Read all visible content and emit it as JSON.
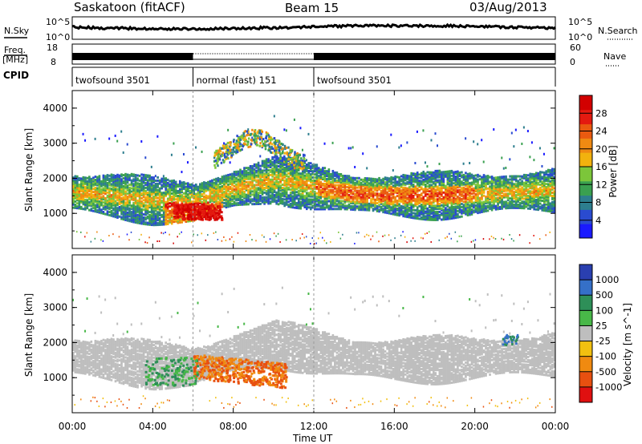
{
  "title": {
    "left": "Saskatoon (fitACF)",
    "center": "Beam 15",
    "right": "03/Aug/2013"
  },
  "status": {
    "nsky_label": "N.Sky",
    "nsearch_label": "N.Search",
    "nsky_top": "10^5",
    "nsky_bottom": "10^0",
    "nsearch_top": "10^5",
    "nsearch_bottom": "10^0",
    "freq_label": "Freq.",
    "freq_unit": "[MHz]",
    "freq_top": "18",
    "freq_bottom": "8",
    "nave_label": "Nave",
    "nave_top": "60",
    "nave_bottom": "0",
    "cpid_label": "CPID"
  },
  "cpid_segments": [
    {
      "label": "twofsound 3501",
      "start": 0,
      "end": 6
    },
    {
      "label": "normal (fast) 151",
      "start": 6,
      "end": 12
    },
    {
      "label": "twofsound 3501",
      "start": 12,
      "end": 24
    }
  ],
  "chart_data": [
    {
      "type": "heatmap",
      "name": "power",
      "ylabel": "Slant Range [km]",
      "ylim": [
        0,
        4500
      ],
      "xlim": [
        0,
        24
      ],
      "colorbar_label": "Power [dB]",
      "colorbar_ticks": [
        "4",
        "8",
        "12",
        "16",
        "20",
        "24",
        "28"
      ],
      "colorbar_colors": [
        "#1a1aff",
        "#2a4bd0",
        "#2d7e8e",
        "#3aa050",
        "#7cc63a",
        "#f2b20e",
        "#ef8a12",
        "#ea5a10",
        "#e41a10",
        "#d20000"
      ],
      "yticks": [
        "1000",
        "2000",
        "3000",
        "4000"
      ],
      "features": [
        {
          "desc": "main band",
          "t": [
            0,
            2,
            4,
            6,
            8,
            10,
            12,
            14,
            16,
            18,
            20,
            22,
            24
          ],
          "r": [
            1600,
            1500,
            1350,
            1300,
            1700,
            1950,
            1750,
            1550,
            1500,
            1500,
            1550,
            1600,
            1650
          ]
        },
        {
          "desc": "strong echoes",
          "t": [
            5,
            6,
            7
          ],
          "r": [
            1000,
            900,
            1050
          ],
          "power_db": 28
        }
      ]
    },
    {
      "type": "heatmap",
      "name": "velocity",
      "ylabel": "Slant Range [km]",
      "ylim": [
        0,
        4500
      ],
      "xlim": [
        0,
        24
      ],
      "colorbar_label": "Velocity [m s^-1]",
      "colorbar_ticks": [
        "1000",
        "500",
        "100",
        "25",
        "-25",
        "-100",
        "-500",
        "-1000"
      ],
      "colorbar_colors": [
        "#2a3fb0",
        "#3570c8",
        "#2e8f58",
        "#48b848",
        "#bebebe",
        "#f2c010",
        "#f08a10",
        "#e85010",
        "#e01010"
      ],
      "yticks": [
        "1000",
        "2000",
        "3000",
        "4000"
      ],
      "xticks": [
        "00:00",
        "04:00",
        "08:00",
        "12:00",
        "16:00",
        "20:00",
        "00:00"
      ],
      "xlabel": "Time UT"
    }
  ]
}
